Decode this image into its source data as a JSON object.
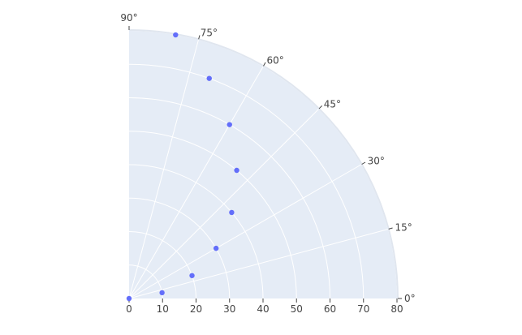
{
  "chart_data": {
    "type": "scatter",
    "subtype": "polar",
    "sector_degrees": [
      0,
      90
    ],
    "radial_range": [
      0,
      80
    ],
    "radial_ticks": [
      0,
      10,
      20,
      30,
      40,
      50,
      60,
      70,
      80
    ],
    "angular_ticks": [
      0,
      15,
      30,
      45,
      60,
      75,
      90
    ],
    "angular_unit": "°",
    "series": [
      {
        "marker_color": "#636efa",
        "points": [
          {
            "r": 0,
            "theta": 0
          },
          {
            "r": 10,
            "theta": 10
          },
          {
            "r": 20,
            "theta": 20
          },
          {
            "r": 30,
            "theta": 30
          },
          {
            "r": 40,
            "theta": 40
          },
          {
            "r": 50,
            "theta": 50
          },
          {
            "r": 60,
            "theta": 60
          },
          {
            "r": 70,
            "theta": 70
          },
          {
            "r": 80,
            "theta": 80
          }
        ]
      }
    ],
    "grid": true,
    "plot_background": "#e5ecf6",
    "grid_color": "#ffffff"
  }
}
